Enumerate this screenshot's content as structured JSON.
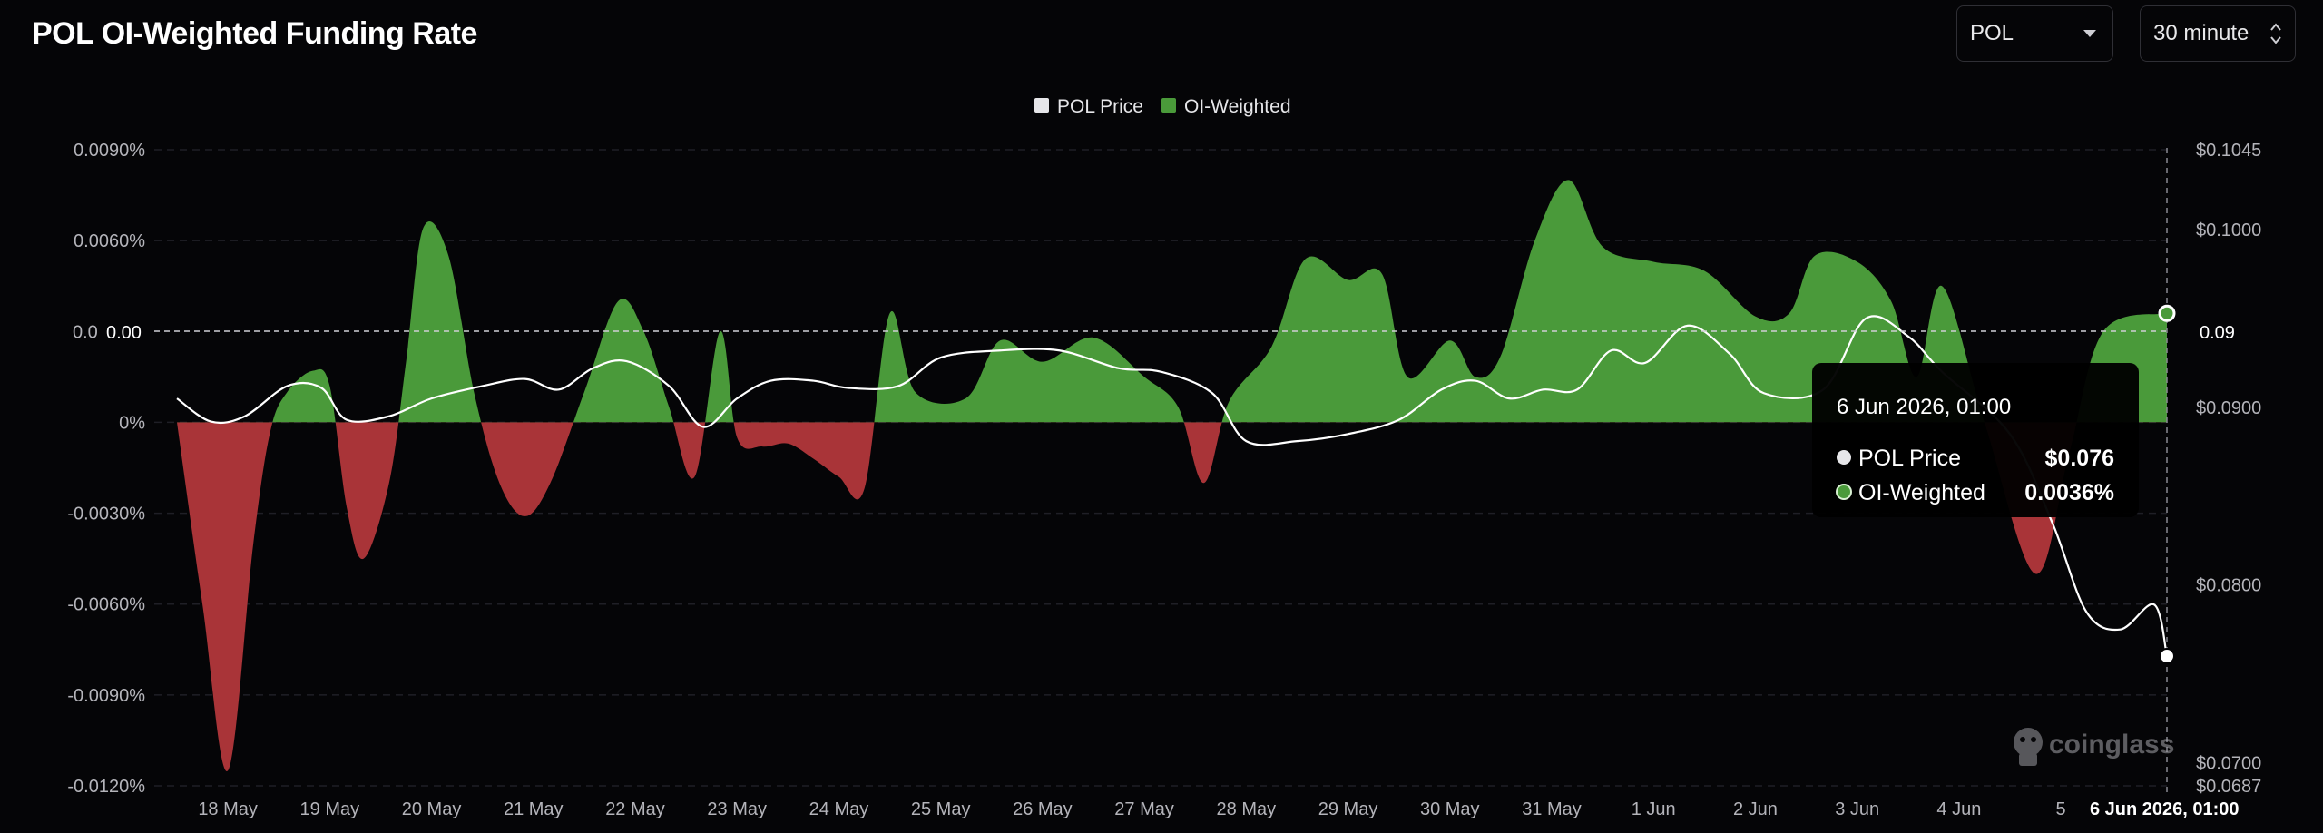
{
  "header": {
    "title": "POL OI-Weighted Funding Rate"
  },
  "controls": {
    "coin_select": "POL",
    "interval_select": "30 minute"
  },
  "legend": [
    {
      "label": "POL Price",
      "color": "#e6e6e9"
    },
    {
      "label": "OI-Weighted",
      "color": "#4a9a3a"
    }
  ],
  "tooltip": {
    "title": "6 Jun 2026, 01:00",
    "rows": [
      {
        "label": "POL Price",
        "value": "$0.076"
      },
      {
        "label": "OI-Weighted",
        "value": "0.0036%"
      }
    ]
  },
  "crosshair": {
    "x_label": "6 Jun 2026, 01:00",
    "left_label": "0.00",
    "right_label": "0.09"
  },
  "watermark": "coinglass",
  "colors": {
    "positive": "#4a9a3a",
    "negative": "#a93438",
    "price_line": "#ffffff",
    "background": "#050507"
  },
  "chart_data": {
    "type": "area",
    "title": "POL OI-Weighted Funding Rate",
    "left_axis": {
      "ticks": [
        "0.0090%",
        "0.0060%",
        "0.00",
        "0%",
        "-0.0030%",
        "-0.0060%",
        "-0.0090%",
        "-0.0120%"
      ],
      "ylim": [
        -0.012,
        0.009
      ],
      "unit": "%"
    },
    "right_axis": {
      "ticks": [
        "$0.1045",
        "$0.1000",
        "0.09",
        "$0.0900",
        "$0.0800",
        "$0.0700",
        "$0.0687"
      ],
      "ylim": [
        0.0687,
        0.1045
      ]
    },
    "x_ticks": [
      "18 May",
      "19 May",
      "20 May",
      "21 May",
      "22 May",
      "23 May",
      "24 May",
      "25 May",
      "26 May",
      "27 May",
      "28 May",
      "29 May",
      "30 May",
      "31 May",
      "1 Jun",
      "2 Jun",
      "3 Jun",
      "4 Jun",
      "5"
    ],
    "series": [
      {
        "name": "OI-Weighted",
        "points": [
          [
            "17 May 12:00",
            0
          ],
          [
            "17 May 18:00",
            -0.006
          ],
          [
            "18 May 00:00",
            -0.0115
          ],
          [
            "18 May 06:00",
            -0.004
          ],
          [
            "18 May 10:00",
            -0.0003
          ],
          [
            "18 May 14:00",
            0.001
          ],
          [
            "18 May 20:00",
            0.0017
          ],
          [
            "19 May 00:00",
            0.0012
          ],
          [
            "19 May 04:00",
            -0.0028
          ],
          [
            "19 May 08:00",
            -0.0045
          ],
          [
            "19 May 14:00",
            -0.002
          ],
          [
            "19 May 18:00",
            0.002
          ],
          [
            "19 May 22:00",
            0.0064
          ],
          [
            "20 May 04:00",
            0.0055
          ],
          [
            "20 May 10:00",
            0.001
          ],
          [
            "20 May 16:00",
            -0.002
          ],
          [
            "20 May 22:00",
            -0.0031
          ],
          [
            "21 May 04:00",
            -0.002
          ],
          [
            "21 May 12:00",
            0.001
          ],
          [
            "21 May 20:00",
            0.004
          ],
          [
            "22 May 02:00",
            0.003
          ],
          [
            "22 May 08:00",
            0.0005
          ],
          [
            "22 May 14:00",
            -0.0018
          ],
          [
            "22 May 20:00",
            0.003
          ],
          [
            "23 May 00:00",
            -0.0005
          ],
          [
            "23 May 06:00",
            -0.0008
          ],
          [
            "23 May 12:00",
            -0.0007
          ],
          [
            "23 May 18:00",
            -0.0012
          ],
          [
            "24 May 00:00",
            -0.0018
          ],
          [
            "24 May 06:00",
            -0.0022
          ],
          [
            "24 May 12:00",
            0.0036
          ],
          [
            "24 May 18:00",
            0.001
          ],
          [
            "25 May 06:00",
            0.0008
          ],
          [
            "25 May 14:00",
            0.0027
          ],
          [
            "26 May 00:00",
            0.002
          ],
          [
            "26 May 12:00",
            0.0028
          ],
          [
            "27 May 00:00",
            0.0015
          ],
          [
            "27 May 08:00",
            0.0005
          ],
          [
            "27 May 14:00",
            -0.002
          ],
          [
            "27 May 20:00",
            0.0007
          ],
          [
            "28 May 06:00",
            0.0025
          ],
          [
            "28 May 14:00",
            0.0054
          ],
          [
            "29 May 00:00",
            0.0047
          ],
          [
            "29 May 08:00",
            0.0049
          ],
          [
            "29 May 14:00",
            0.0015
          ],
          [
            "30 May 00:00",
            0.0027
          ],
          [
            "30 May 06:00",
            0.0015
          ],
          [
            "30 May 12:00",
            0.0022
          ],
          [
            "30 May 20:00",
            0.006
          ],
          [
            "31 May 04:00",
            0.008
          ],
          [
            "31 May 12:00",
            0.0058
          ],
          [
            "1 Jun 00:00",
            0.0053
          ],
          [
            "1 Jun 12:00",
            0.005
          ],
          [
            "2 Jun 00:00",
            0.0035
          ],
          [
            "2 Jun 08:00",
            0.0036
          ],
          [
            "2 Jun 14:00",
            0.0055
          ],
          [
            "3 Jun 00:00",
            0.0053
          ],
          [
            "3 Jun 08:00",
            0.004
          ],
          [
            "3 Jun 14:00",
            0.0015
          ],
          [
            "3 Jun 20:00",
            0.0045
          ],
          [
            "4 Jun 06:00",
            0.0
          ],
          [
            "4 Jun 18:00",
            -0.005
          ],
          [
            "5 Jun 02:00",
            -0.001
          ],
          [
            "5 Jun 10:00",
            0.003
          ],
          [
            "6 Jun 01:00",
            0.0036
          ]
        ]
      },
      {
        "name": "POL Price",
        "points": [
          [
            "17 May 12:00",
            0.0905
          ],
          [
            "17 May 20:00",
            0.0892
          ],
          [
            "18 May 04:00",
            0.0895
          ],
          [
            "18 May 14:00",
            0.0912
          ],
          [
            "18 May 22:00",
            0.0911
          ],
          [
            "19 May 04:00",
            0.0893
          ],
          [
            "19 May 14:00",
            0.0895
          ],
          [
            "20 May 00:00",
            0.0905
          ],
          [
            "20 May 12:00",
            0.0912
          ],
          [
            "20 May 22:00",
            0.0916
          ],
          [
            "21 May 06:00",
            0.091
          ],
          [
            "21 May 14:00",
            0.0922
          ],
          [
            "21 May 22:00",
            0.0926
          ],
          [
            "22 May 08:00",
            0.0912
          ],
          [
            "22 May 16:00",
            0.0889
          ],
          [
            "23 May 00:00",
            0.0905
          ],
          [
            "23 May 08:00",
            0.0915
          ],
          [
            "23 May 18:00",
            0.0915
          ],
          [
            "24 May 02:00",
            0.0911
          ],
          [
            "24 May 14:00",
            0.0912
          ],
          [
            "25 May 00:00",
            0.0928
          ],
          [
            "25 May 14:00",
            0.0932
          ],
          [
            "26 May 04:00",
            0.0932
          ],
          [
            "26 May 18:00",
            0.0922
          ],
          [
            "27 May 04:00",
            0.092
          ],
          [
            "27 May 16:00",
            0.0908
          ],
          [
            "28 May 00:00",
            0.0881
          ],
          [
            "28 May 12:00",
            0.0881
          ],
          [
            "29 May 00:00",
            0.0885
          ],
          [
            "29 May 12:00",
            0.0893
          ],
          [
            "29 May 22:00",
            0.091
          ],
          [
            "30 May 06:00",
            0.0915
          ],
          [
            "30 May 14:00",
            0.0905
          ],
          [
            "30 May 22:00",
            0.091
          ],
          [
            "31 May 06:00",
            0.091
          ],
          [
            "31 May 14:00",
            0.0932
          ],
          [
            "31 May 22:00",
            0.0925
          ],
          [
            "1 Jun 08:00",
            0.0946
          ],
          [
            "1 Jun 18:00",
            0.093
          ],
          [
            "2 Jun 02:00",
            0.0908
          ],
          [
            "2 Jun 16:00",
            0.091
          ],
          [
            "3 Jun 02:00",
            0.095
          ],
          [
            "3 Jun 12:00",
            0.094
          ],
          [
            "3 Jun 20:00",
            0.092
          ],
          [
            "4 Jun 12:00",
            0.0885
          ],
          [
            "4 Jun 22:00",
            0.0835
          ],
          [
            "5 Jun 06:00",
            0.0785
          ],
          [
            "5 Jun 14:00",
            0.0775
          ],
          [
            "5 Jun 22:00",
            0.0789
          ],
          [
            "6 Jun 01:00",
            0.076
          ]
        ]
      }
    ],
    "grid": true,
    "legend_position": "top-center"
  }
}
